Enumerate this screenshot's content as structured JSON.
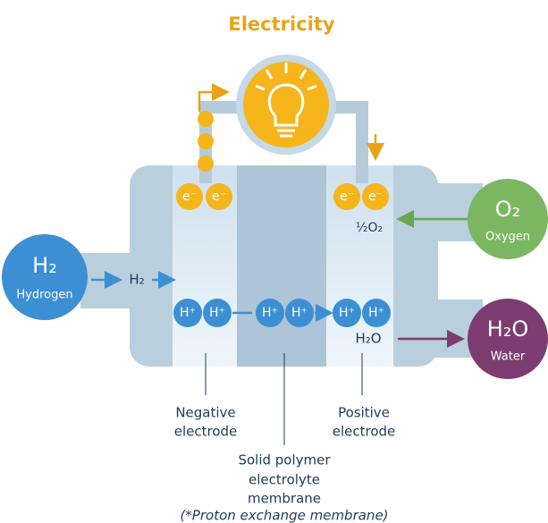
{
  "title": "Electricity",
  "electrons": [
    "e⁻",
    "e⁻",
    "e⁻",
    "e⁻"
  ],
  "hydrogen": {
    "formula": "H₂",
    "label": "Hydrogen"
  },
  "oxygen": {
    "formula": "O₂",
    "label": "Oxygen"
  },
  "water": {
    "formula": "H₂O",
    "label": "Water"
  },
  "flow_labels": {
    "hydrogen_in": "H₂",
    "oxygen_in": "½O₂",
    "water_out": "H₂O"
  },
  "protons": [
    "H⁺",
    "H⁺",
    "H⁺",
    "H⁺",
    "H⁺",
    "H⁺"
  ],
  "parts": {
    "negative_electrode": [
      "Negative",
      "electrode"
    ],
    "positive_electrode": [
      "Positive",
      "electrode"
    ],
    "membrane": [
      "Solid polymer",
      "electrolyte",
      "membrane"
    ],
    "membrane_note": "(*Proton exchange membrane)"
  }
}
